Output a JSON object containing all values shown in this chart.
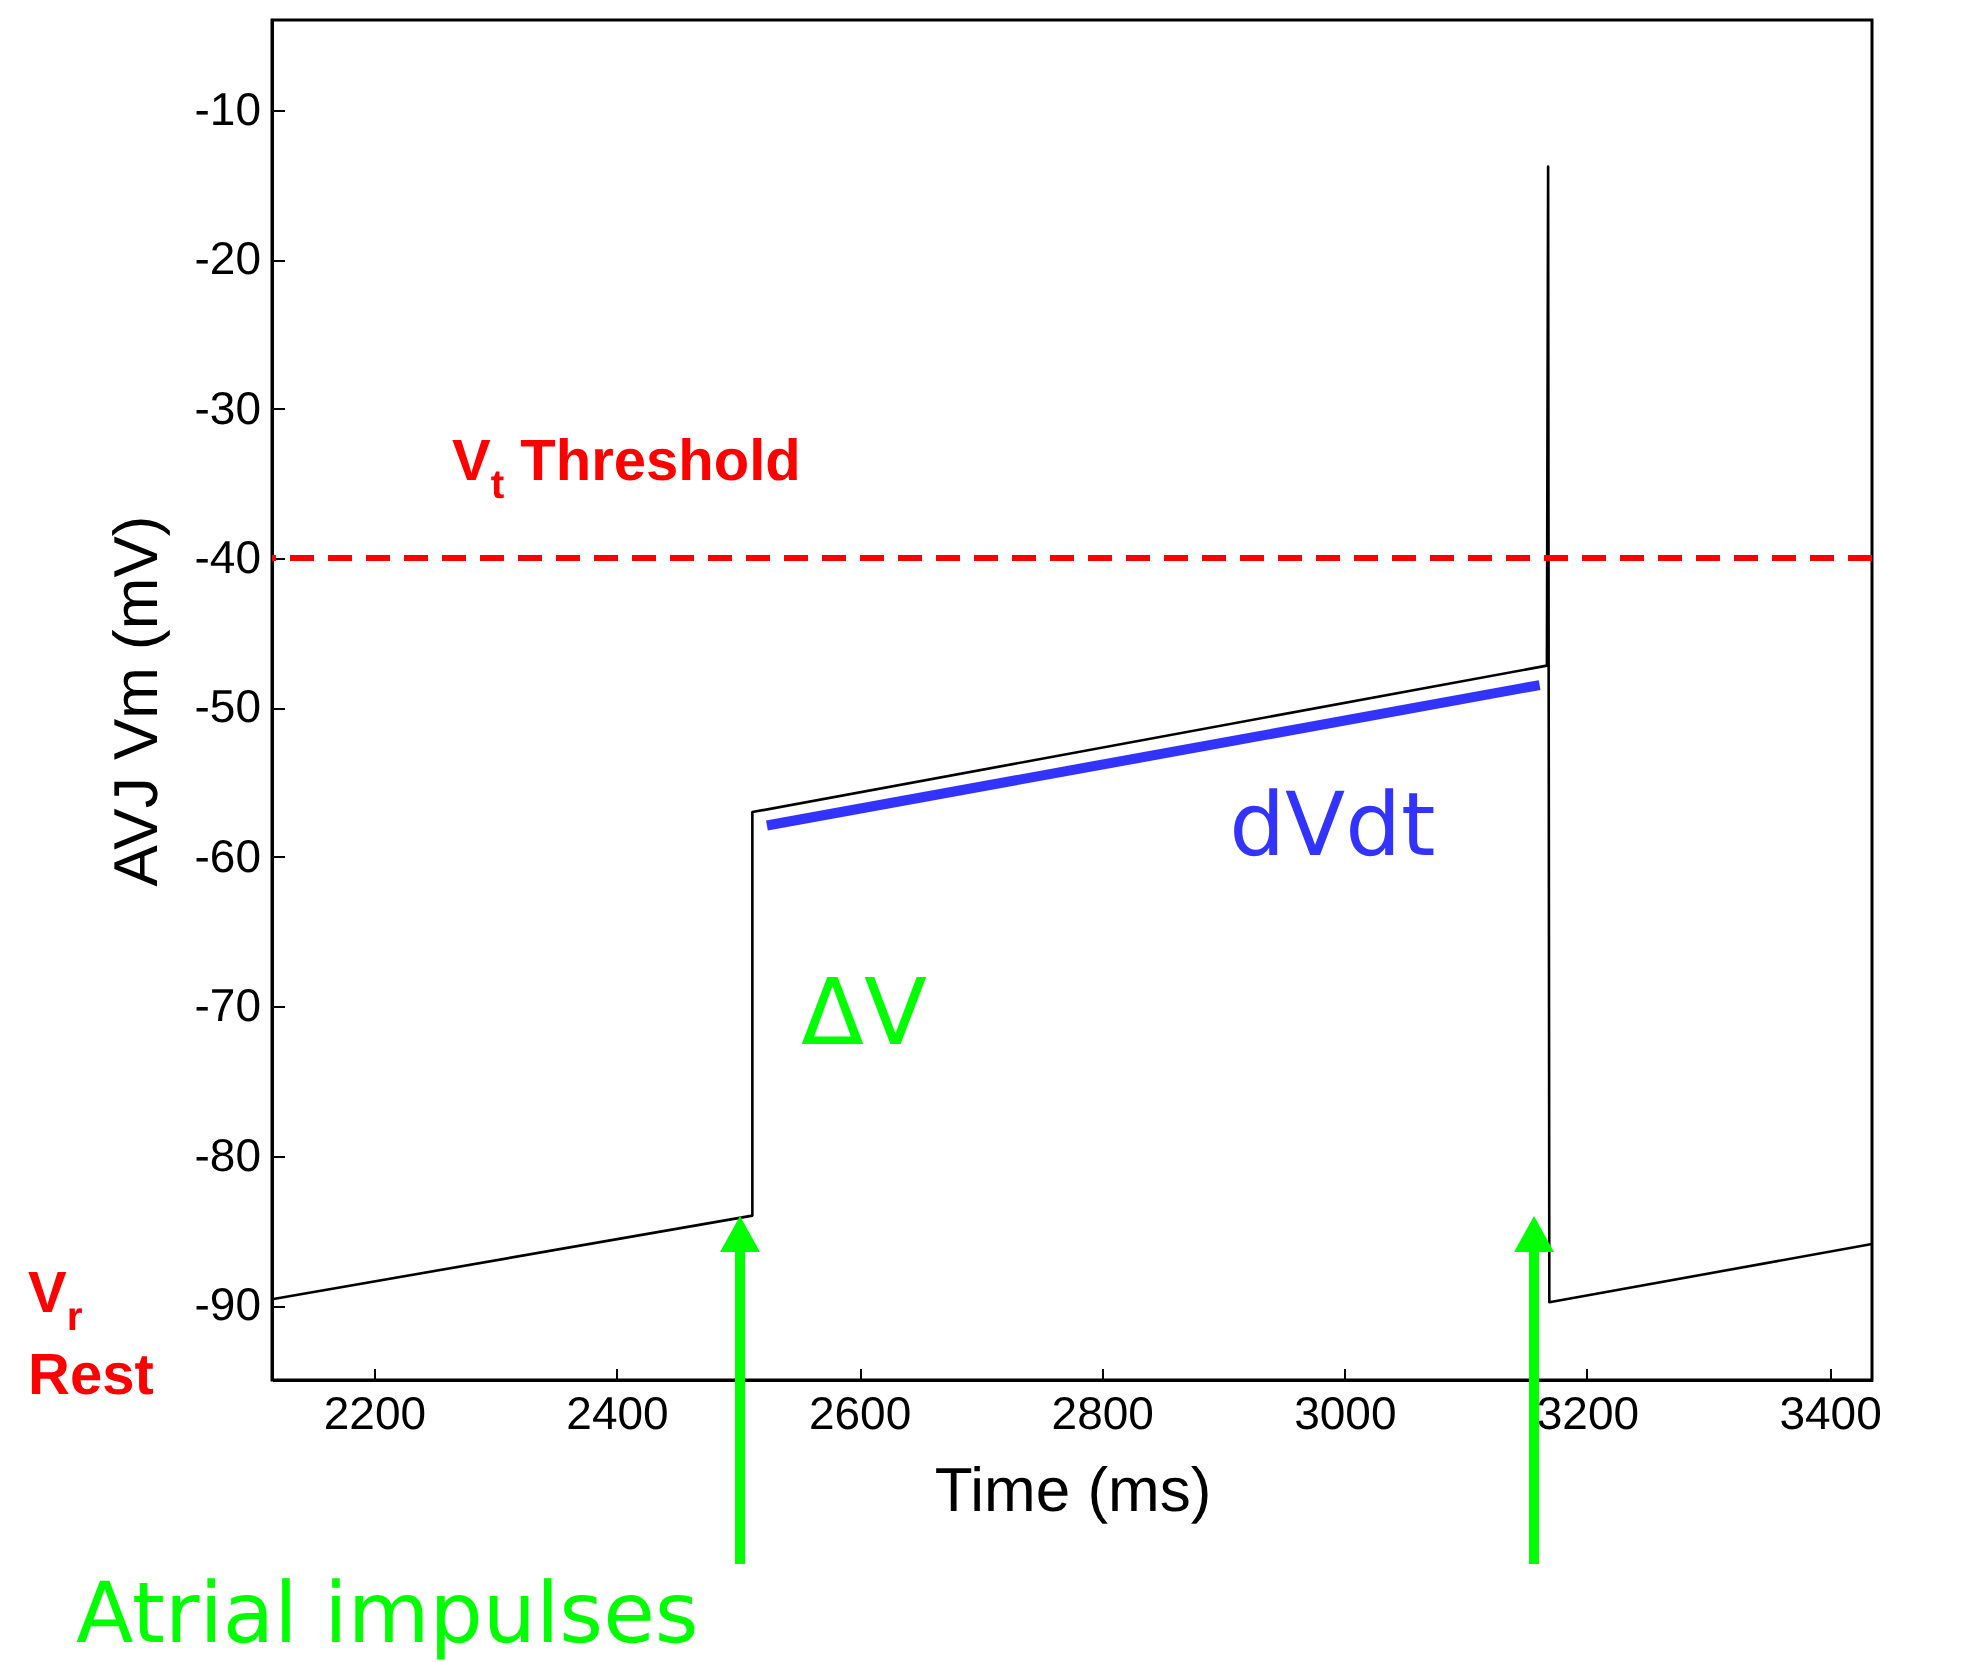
{
  "chart_data": {
    "type": "line",
    "xlabel": "Time (ms)",
    "ylabel": "AVJ Vm (mV)",
    "xlim": [
      2116,
      3435
    ],
    "ylim": [
      -95,
      -4
    ],
    "xticks": [
      2200,
      2400,
      2600,
      2800,
      3000,
      3200,
      3400
    ],
    "yticks": [
      -90,
      -80,
      -70,
      -60,
      -50,
      -40,
      -30,
      -20,
      -10
    ],
    "grid": false,
    "marker": "none",
    "series": [
      {
        "color": "#000000",
        "x": [
          2116,
          2512,
          2512,
          3167,
          3168,
          3169,
          3435
        ],
        "values": [
          -89.6,
          -84,
          -57,
          -47.2,
          -13.8,
          -89.8,
          -85.9
        ]
      },
      {
        "name": "dVdt",
        "color": "#3333ff",
        "x": [
          2524,
          3161
        ],
        "values": [
          -57.9,
          -48.5
        ]
      }
    ],
    "ref_lines": [
      {
        "axis": "y",
        "value": -40,
        "label": "V$_{t}$ Threshold",
        "color": "#ff0000",
        "line_style": "dashed"
      }
    ],
    "annotations": [
      "ΔV",
      "V$_{r}$ Rest",
      "Atrial impulses"
    ]
  }
}
